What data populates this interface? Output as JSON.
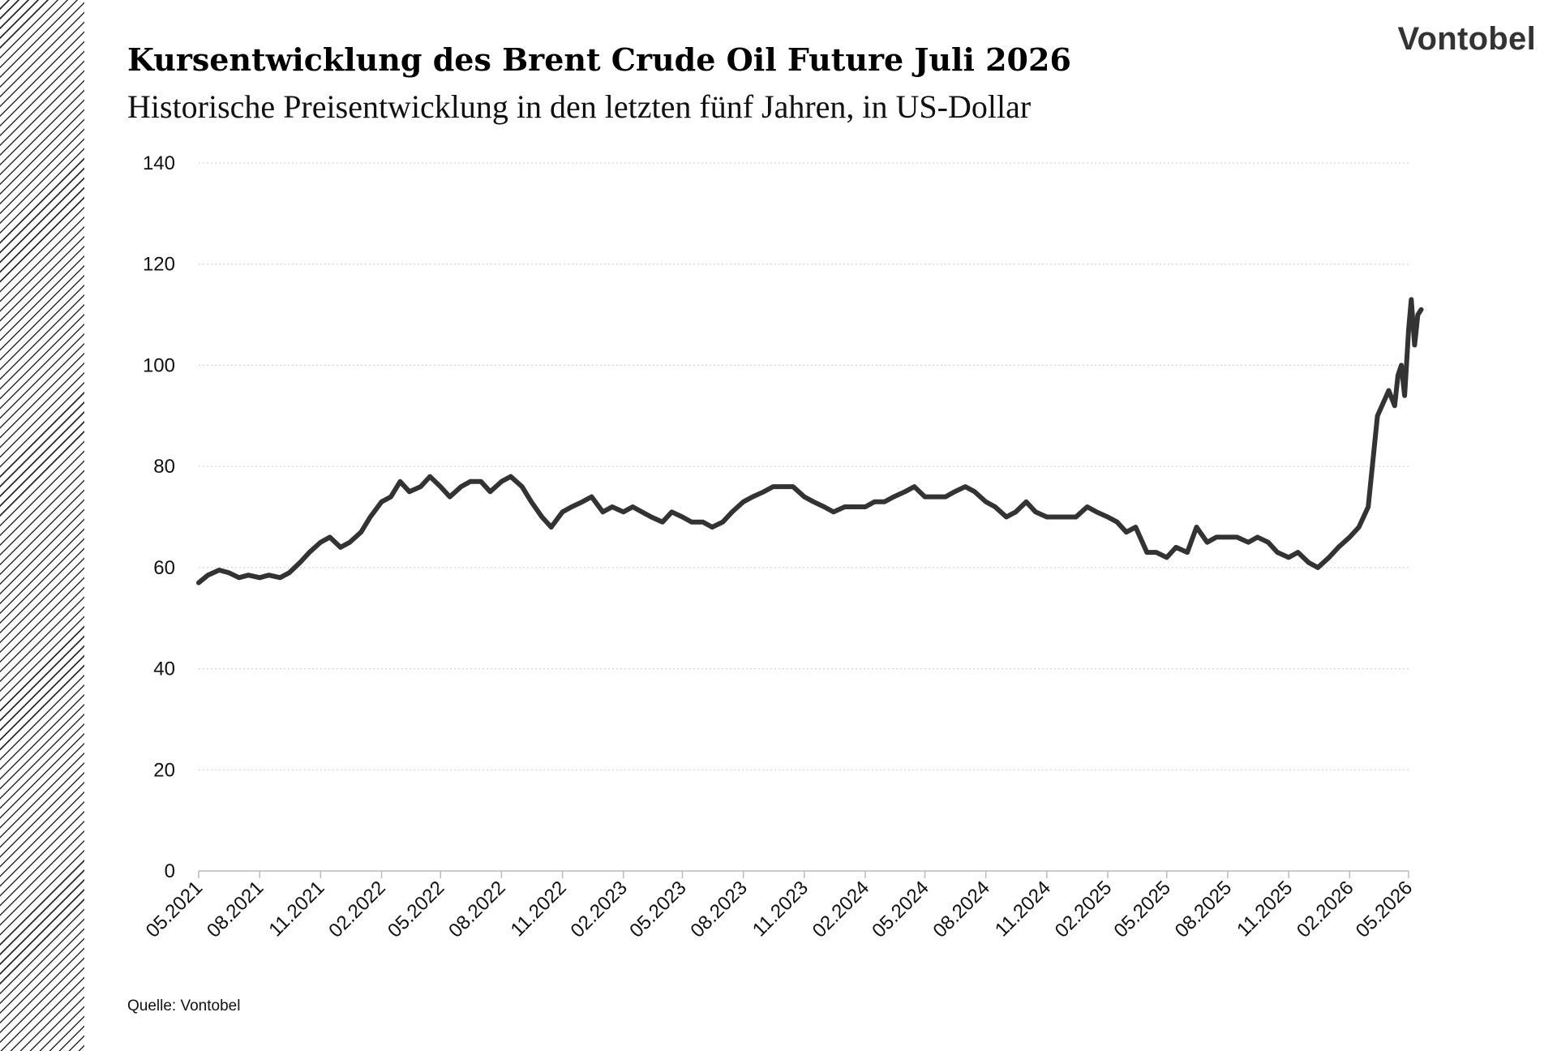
{
  "brand": "Vontobel",
  "title": "Kursentwicklung des Brent Crude Oil Future Juli 2026",
  "subtitle": "Historische Preisentwicklung in den letzten fünf Jahren, in US-Dollar",
  "source": "Quelle: Vontobel",
  "colors": {
    "line": "#333333",
    "grid": "#cccccc",
    "axis": "#bbbbbb",
    "hatch": "#2a2a2a"
  },
  "chart_data": {
    "type": "line",
    "title": "Kursentwicklung des Brent Crude Oil Future Juli 2026",
    "xlabel": "",
    "ylabel": "",
    "ylim": [
      0,
      140
    ],
    "yticks": [
      0,
      20,
      40,
      60,
      80,
      100,
      120,
      140
    ],
    "xticks": [
      "05.2021",
      "08.2021",
      "11.2021",
      "02.2022",
      "05.2022",
      "08.2022",
      "11.2022",
      "02.2023",
      "05.2023",
      "08.2023",
      "11.2023",
      "02.2024",
      "05.2024",
      "08.2024",
      "11.2024",
      "02.2025",
      "05.2025",
      "08.2025",
      "11.2025",
      "02.2026",
      "05.2026"
    ],
    "grid": true,
    "legend": "none",
    "series": [
      {
        "values": [
          [
            "2021-05-01",
            57
          ],
          [
            "2021-05-15",
            58.5
          ],
          [
            "2021-06-01",
            59.5
          ],
          [
            "2021-06-15",
            59
          ],
          [
            "2021-07-01",
            58
          ],
          [
            "2021-07-15",
            58.5
          ],
          [
            "2021-08-01",
            58
          ],
          [
            "2021-08-15",
            58.5
          ],
          [
            "2021-09-01",
            58
          ],
          [
            "2021-09-15",
            59
          ],
          [
            "2021-10-01",
            61
          ],
          [
            "2021-10-15",
            63
          ],
          [
            "2021-11-01",
            65
          ],
          [
            "2021-11-15",
            66
          ],
          [
            "2021-12-01",
            64
          ],
          [
            "2021-12-15",
            65
          ],
          [
            "2022-01-01",
            67
          ],
          [
            "2022-01-15",
            70
          ],
          [
            "2022-02-01",
            73
          ],
          [
            "2022-02-15",
            74
          ],
          [
            "2022-03-01",
            77
          ],
          [
            "2022-03-15",
            75
          ],
          [
            "2022-04-01",
            76
          ],
          [
            "2022-04-15",
            78
          ],
          [
            "2022-05-01",
            76
          ],
          [
            "2022-05-15",
            74
          ],
          [
            "2022-06-01",
            76
          ],
          [
            "2022-06-15",
            77
          ],
          [
            "2022-07-01",
            77
          ],
          [
            "2022-07-15",
            75
          ],
          [
            "2022-08-01",
            77
          ],
          [
            "2022-08-15",
            78
          ],
          [
            "2022-09-01",
            76
          ],
          [
            "2022-09-15",
            73
          ],
          [
            "2022-10-01",
            70
          ],
          [
            "2022-10-15",
            68
          ],
          [
            "2022-11-01",
            71
          ],
          [
            "2022-11-15",
            72
          ],
          [
            "2022-12-01",
            73
          ],
          [
            "2022-12-15",
            74
          ],
          [
            "2023-01-01",
            71
          ],
          [
            "2023-01-15",
            72
          ],
          [
            "2023-02-01",
            71
          ],
          [
            "2023-02-15",
            72
          ],
          [
            "2023-03-01",
            71
          ],
          [
            "2023-03-15",
            70
          ],
          [
            "2023-04-01",
            69
          ],
          [
            "2023-04-15",
            71
          ],
          [
            "2023-05-01",
            70
          ],
          [
            "2023-05-15",
            69
          ],
          [
            "2023-06-01",
            69
          ],
          [
            "2023-06-15",
            68
          ],
          [
            "2023-07-01",
            69
          ],
          [
            "2023-07-15",
            71
          ],
          [
            "2023-08-01",
            73
          ],
          [
            "2023-08-15",
            74
          ],
          [
            "2023-09-01",
            75
          ],
          [
            "2023-09-15",
            76
          ],
          [
            "2023-10-01",
            76
          ],
          [
            "2023-10-15",
            76
          ],
          [
            "2023-11-01",
            74
          ],
          [
            "2023-11-15",
            73
          ],
          [
            "2023-12-01",
            72
          ],
          [
            "2023-12-15",
            71
          ],
          [
            "2024-01-01",
            72
          ],
          [
            "2024-01-15",
            72
          ],
          [
            "2024-02-01",
            72
          ],
          [
            "2024-02-15",
            73
          ],
          [
            "2024-03-01",
            73
          ],
          [
            "2024-03-15",
            74
          ],
          [
            "2024-04-01",
            75
          ],
          [
            "2024-04-15",
            76
          ],
          [
            "2024-05-01",
            74
          ],
          [
            "2024-05-15",
            74
          ],
          [
            "2024-06-01",
            74
          ],
          [
            "2024-06-15",
            75
          ],
          [
            "2024-07-01",
            76
          ],
          [
            "2024-07-15",
            75
          ],
          [
            "2024-08-01",
            73
          ],
          [
            "2024-08-15",
            72
          ],
          [
            "2024-09-01",
            70
          ],
          [
            "2024-09-15",
            71
          ],
          [
            "2024-10-01",
            73
          ],
          [
            "2024-10-15",
            71
          ],
          [
            "2024-11-01",
            70
          ],
          [
            "2024-11-15",
            70
          ],
          [
            "2024-12-01",
            70
          ],
          [
            "2024-12-15",
            70
          ],
          [
            "2025-01-01",
            72
          ],
          [
            "2025-01-15",
            71
          ],
          [
            "2025-02-01",
            70
          ],
          [
            "2025-02-15",
            69
          ],
          [
            "2025-03-01",
            67
          ],
          [
            "2025-03-15",
            68
          ],
          [
            "2025-04-01",
            63
          ],
          [
            "2025-04-15",
            63
          ],
          [
            "2025-05-01",
            62
          ],
          [
            "2025-05-15",
            64
          ],
          [
            "2025-06-01",
            63
          ],
          [
            "2025-06-15",
            68
          ],
          [
            "2025-07-01",
            65
          ],
          [
            "2025-07-15",
            66
          ],
          [
            "2025-08-01",
            66
          ],
          [
            "2025-08-15",
            66
          ],
          [
            "2025-09-01",
            65
          ],
          [
            "2025-09-15",
            66
          ],
          [
            "2025-10-01",
            65
          ],
          [
            "2025-10-15",
            63
          ],
          [
            "2025-11-01",
            62
          ],
          [
            "2025-11-15",
            63
          ],
          [
            "2025-12-01",
            61
          ],
          [
            "2025-12-15",
            60
          ],
          [
            "2026-01-01",
            62
          ],
          [
            "2026-01-15",
            64
          ],
          [
            "2026-02-01",
            66
          ],
          [
            "2026-02-15",
            68
          ],
          [
            "2026-03-01",
            72
          ],
          [
            "2026-03-15",
            90
          ],
          [
            "2026-04-01",
            95
          ],
          [
            "2026-04-10",
            92
          ],
          [
            "2026-04-15",
            98
          ],
          [
            "2026-04-20",
            100
          ],
          [
            "2026-04-25",
            94
          ],
          [
            "2026-05-01",
            107
          ],
          [
            "2026-05-05",
            113
          ],
          [
            "2026-05-10",
            104
          ],
          [
            "2026-05-15",
            110
          ],
          [
            "2026-05-20",
            111
          ]
        ]
      }
    ]
  }
}
